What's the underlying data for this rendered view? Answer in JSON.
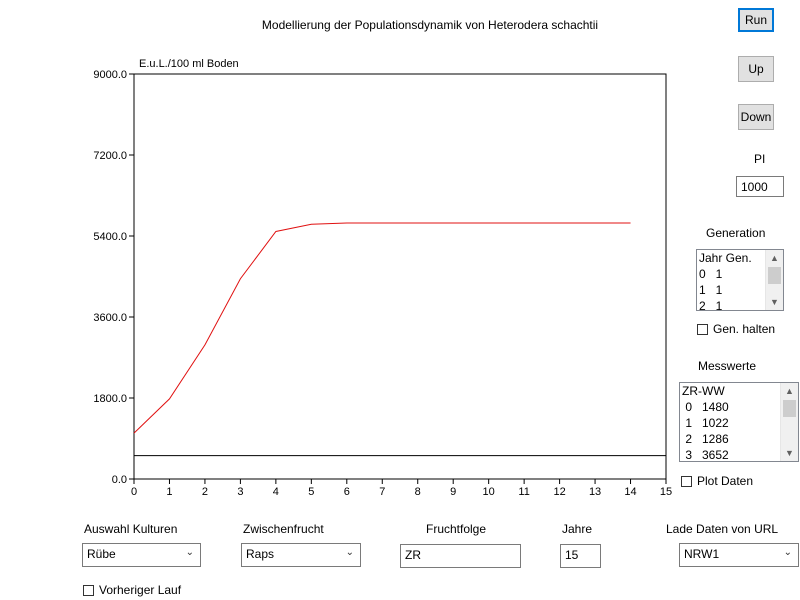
{
  "title": "Modellierung der Populationsdynamik von Heterodera schachtii",
  "buttons": {
    "run": "Run",
    "up": "Up",
    "down": "Down"
  },
  "pi": {
    "label": "PI",
    "value": "1000"
  },
  "generation": {
    "label": "Generation",
    "header": "Jahr Gen.",
    "rows": [
      "0   1",
      "1   1",
      "2   1"
    ],
    "hold_label": "Gen. halten"
  },
  "messwerte": {
    "label": "Messwerte",
    "header": "ZR-WW",
    "rows": [
      " 0   1480",
      " 1   1022",
      " 2   1286",
      " 3   3652"
    ],
    "plot_label": "Plot Daten"
  },
  "controls": {
    "kulturen": {
      "label": "Auswahl Kulturen",
      "value": "Rübe"
    },
    "zwischenfrucht": {
      "label": "Zwischenfrucht",
      "value": "Raps"
    },
    "fruchtfolge": {
      "label": "Fruchtfolge",
      "value": "ZR"
    },
    "jahre": {
      "label": "Jahre",
      "value": "15"
    },
    "url": {
      "label": "Lade Daten von URL",
      "value": "NRW1"
    },
    "vorheriger": "Vorheriger Lauf"
  },
  "chart_data": {
    "type": "line",
    "ylabel": "E.u.L./100 ml Boden",
    "xlim": [
      0,
      15
    ],
    "ylim": [
      0,
      9000
    ],
    "xticks": [
      0,
      1,
      2,
      3,
      4,
      5,
      6,
      7,
      8,
      9,
      10,
      11,
      12,
      13,
      14,
      15
    ],
    "yticks": [
      "0.0",
      "1800.0",
      "3600.0",
      "5400.0",
      "7200.0",
      "9000.0"
    ],
    "grid": false,
    "series": [
      {
        "color": "#e01010",
        "x": [
          0,
          1,
          2,
          3,
          4,
          5,
          6,
          7,
          8,
          9,
          10,
          11,
          12,
          13,
          14
        ],
        "y": [
          1020,
          1780,
          2980,
          4450,
          5500,
          5660,
          5690,
          5690,
          5690,
          5690,
          5690,
          5690,
          5690,
          5690,
          5690
        ]
      },
      {
        "color": "#000000",
        "x": [
          0,
          15
        ],
        "y": [
          520,
          520
        ]
      }
    ]
  }
}
